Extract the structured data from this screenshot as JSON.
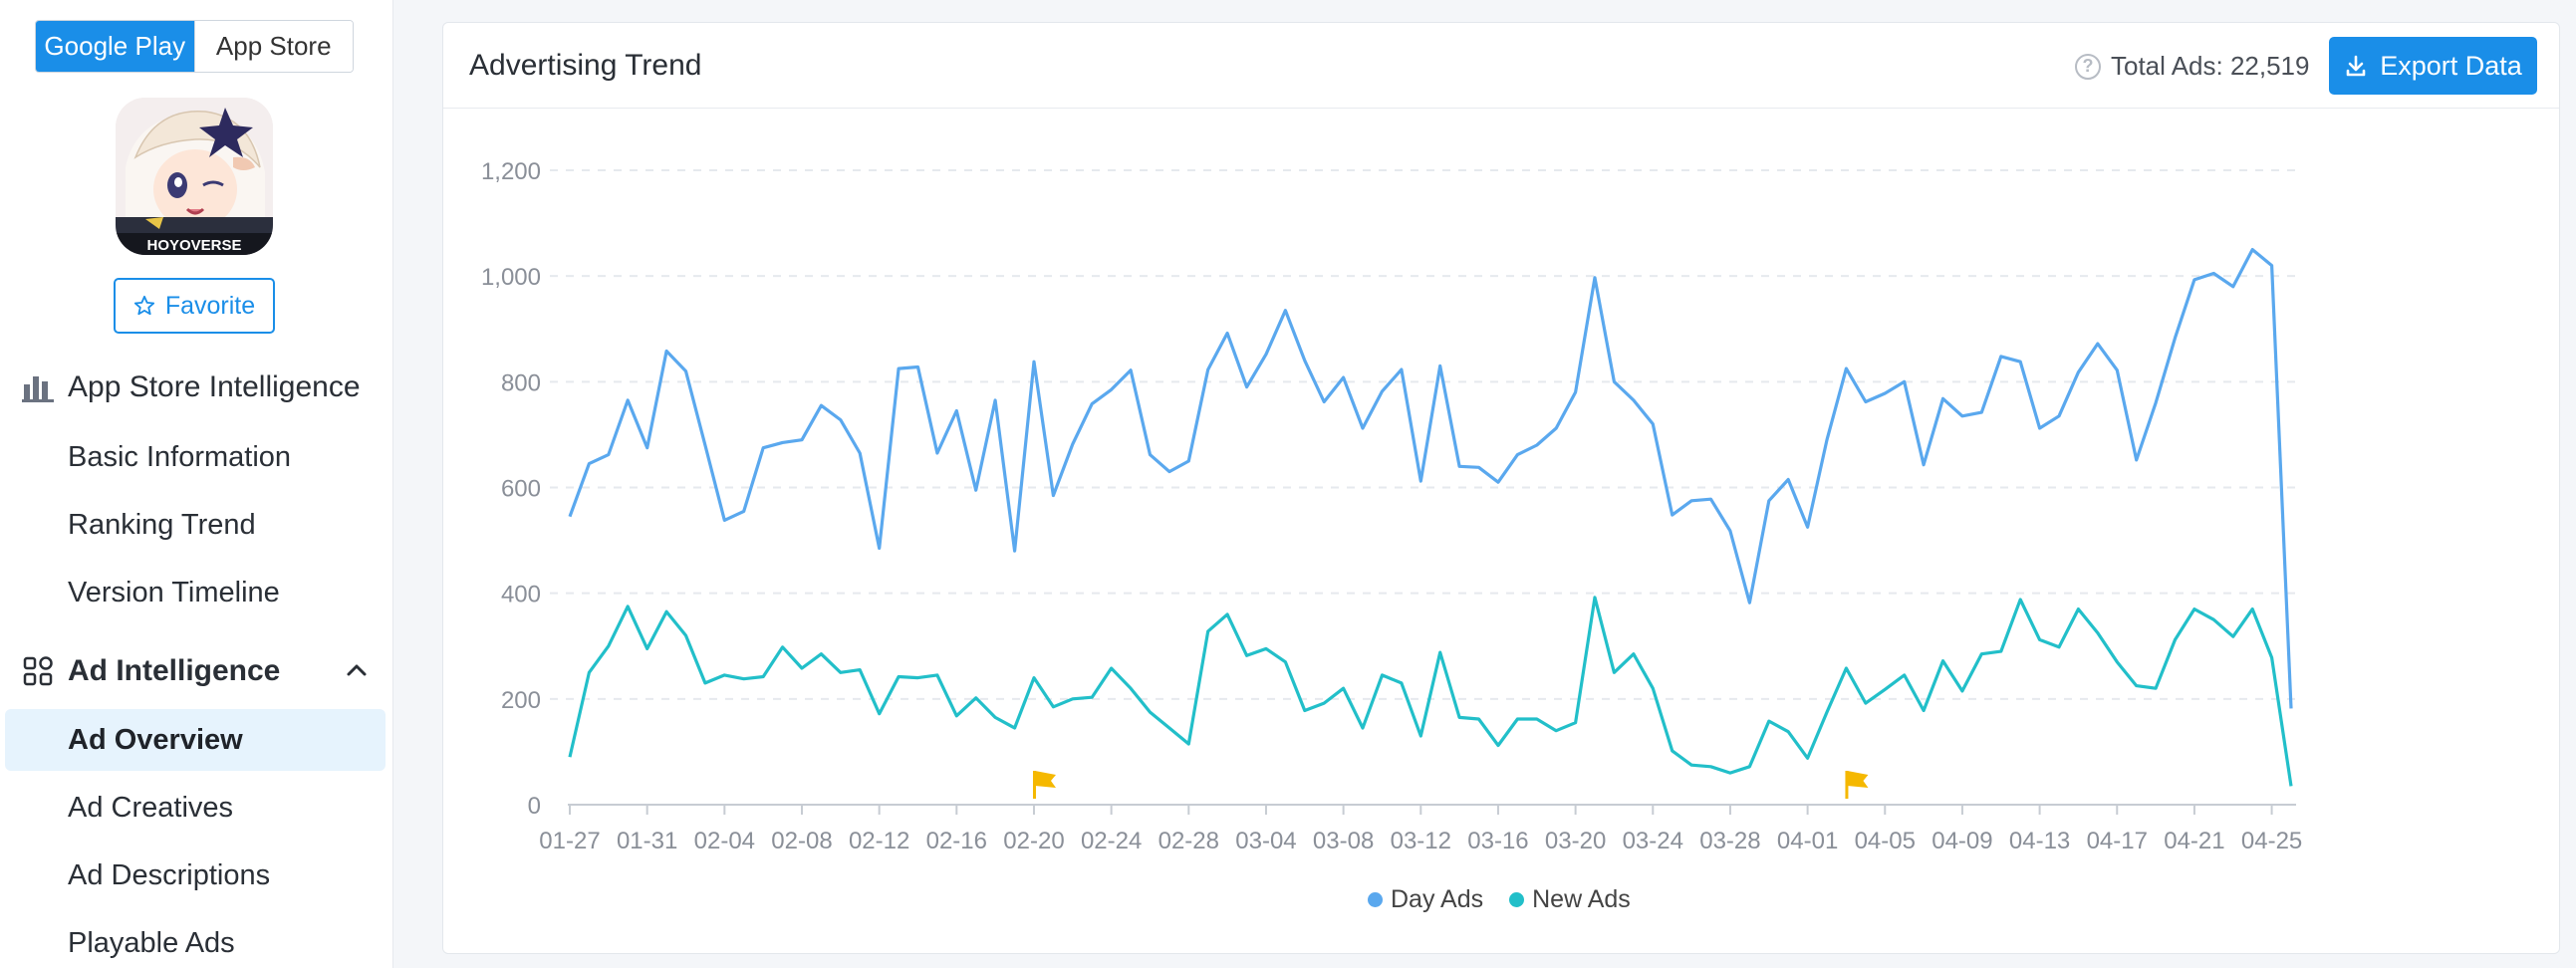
{
  "sidebar": {
    "store_tabs": [
      {
        "label": "Google Play",
        "active": true
      },
      {
        "label": "App Store",
        "active": false
      }
    ],
    "app_icon_label": "HOYOVERSE",
    "favorite_label": "Favorite",
    "sections": [
      {
        "label": "App Store Intelligence",
        "icon": "bar-chart-icon"
      },
      {
        "label": "Ad Intelligence",
        "icon": "grid-apps-icon"
      }
    ],
    "items": [
      {
        "label": "Basic Information"
      },
      {
        "label": "Ranking Trend"
      },
      {
        "label": "Version Timeline"
      },
      {
        "label": "Ad Overview",
        "active": true
      },
      {
        "label": "Ad Creatives"
      },
      {
        "label": "Ad Descriptions"
      },
      {
        "label": "Playable Ads"
      }
    ]
  },
  "card": {
    "title": "Advertising Trend",
    "total_label": "Total Ads: 22,519",
    "export_label": "Export Data"
  },
  "colors": {
    "accent": "#1a8ee8",
    "day_ads": "#5aa8ee",
    "new_ads": "#22bfc9",
    "flag": "#f5b800"
  },
  "chart_data": {
    "type": "line",
    "title": "",
    "xlabel": "",
    "ylabel": "",
    "ylim": [
      0,
      1200
    ],
    "yticks": [
      0,
      200,
      400,
      600,
      800,
      1000,
      1200
    ],
    "ytick_labels": [
      "0",
      "200",
      "400",
      "600",
      "800",
      "1,000",
      "1,200"
    ],
    "x_tick_labels": [
      "01-27",
      "01-31",
      "02-04",
      "02-08",
      "02-12",
      "02-16",
      "02-20",
      "02-24",
      "02-28",
      "03-04",
      "03-08",
      "03-12",
      "03-16",
      "03-20",
      "03-24",
      "03-28",
      "04-01",
      "04-05",
      "04-09",
      "04-13",
      "04-17",
      "04-21",
      "04-25"
    ],
    "start_date": "01-27",
    "flag_dates": [
      "02-20",
      "04-03"
    ],
    "grid": true,
    "legend_position": "bottom",
    "series": [
      {
        "name": "Day Ads",
        "color": "#5aa8ee",
        "values": [
          545,
          645,
          662,
          765,
          675,
          858,
          820,
          680,
          538,
          555,
          675,
          685,
          690,
          755,
          728,
          665,
          485,
          825,
          828,
          665,
          745,
          595,
          765,
          480,
          838,
          585,
          682,
          758,
          785,
          822,
          662,
          630,
          650,
          823,
          892,
          790,
          852,
          935,
          840,
          762,
          808,
          712,
          782,
          823,
          612,
          830,
          640,
          638,
          610,
          662,
          680,
          712,
          780,
          997,
          800,
          765,
          720,
          548,
          575,
          578,
          518,
          382,
          575,
          615,
          525,
          690,
          825,
          762,
          778,
          800,
          643,
          768,
          735,
          742,
          848,
          838,
          712,
          735,
          818,
          872,
          822,
          652,
          760,
          883,
          993,
          1005,
          980,
          1050,
          1020,
          182
        ]
      },
      {
        "name": "New Ads",
        "color": "#22bfc9",
        "values": [
          90,
          250,
          300,
          375,
          295,
          365,
          320,
          230,
          245,
          238,
          242,
          298,
          258,
          285,
          250,
          255,
          172,
          242,
          240,
          245,
          168,
          202,
          165,
          145,
          240,
          185,
          200,
          203,
          258,
          220,
          175,
          145,
          115,
          328,
          360,
          282,
          295,
          270,
          178,
          192,
          220,
          145,
          245,
          230,
          130,
          288,
          165,
          162,
          112,
          162,
          162,
          140,
          155,
          392,
          250,
          285,
          220,
          102,
          75,
          72,
          60,
          72,
          158,
          138,
          88,
          175,
          258,
          192,
          218,
          245,
          178,
          272,
          215,
          285,
          290,
          388,
          312,
          298,
          370,
          325,
          270,
          225,
          220,
          312,
          370,
          350,
          318,
          370,
          278,
          35
        ]
      }
    ]
  }
}
